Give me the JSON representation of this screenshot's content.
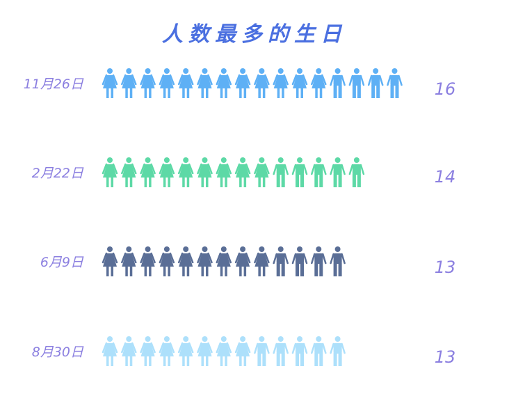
{
  "chart_data": {
    "type": "pictorial-bar",
    "title": "人数最多的生日",
    "categories": [
      "11月26日",
      "2月22日",
      "6月9日",
      "8月30日"
    ],
    "values": [
      16,
      14,
      13,
      13
    ],
    "female_counts": [
      12,
      9,
      9,
      8
    ],
    "male_counts": [
      4,
      5,
      4,
      5
    ],
    "colors": [
      "#5eb0f5",
      "#5dd9a6",
      "#5a6e96",
      "#ade0fb"
    ],
    "label_color": "#8b7fe0",
    "title_color": "#4a6fe0",
    "icons": [
      "female-icon",
      "male-icon"
    ]
  }
}
